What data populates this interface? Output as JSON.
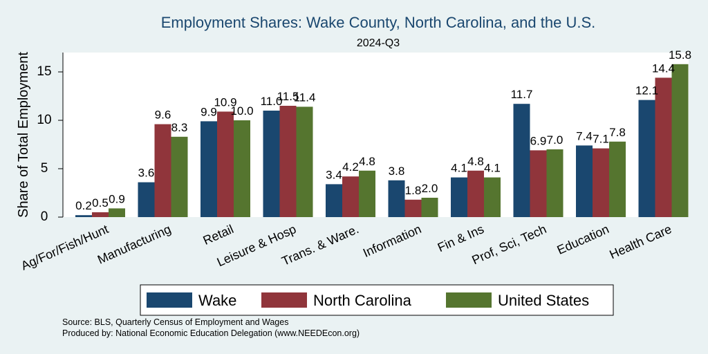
{
  "colors": {
    "background": "#eaf2f3",
    "plot_background": "#ffffff",
    "wake": "#1a476f",
    "north_carolina": "#90353b",
    "united_states": "#55752f"
  },
  "chart_data": {
    "type": "bar",
    "title": "Employment Shares: Wake County, North Carolina, and the U.S.",
    "subtitle": "2024-Q3",
    "xlabel": "",
    "ylabel": "Share of Total Employment",
    "ylim": [
      0,
      17
    ],
    "yticks": [
      0,
      5,
      10,
      15
    ],
    "grid": false,
    "legend_position": "bottom",
    "categories": [
      "Ag/For/Fish/Hunt",
      "Manufacturing",
      "Retail",
      "Leisure & Hosp",
      "Trans. & Ware.",
      "Information",
      "Fin & Ins",
      "Prof, Sci, Tech",
      "Education",
      "Health Care"
    ],
    "series": [
      {
        "name": "Wake",
        "color": "#1a476f",
        "values": [
          0.2,
          3.6,
          9.9,
          11.0,
          3.4,
          3.8,
          4.1,
          11.7,
          7.4,
          12.1
        ],
        "labels": [
          "0.2",
          "3.6",
          "9.9",
          "11.0",
          "3.4",
          "3.8",
          "4.1",
          "11.7",
          "7.4",
          "12.1"
        ]
      },
      {
        "name": "North Carolina",
        "color": "#90353b",
        "values": [
          0.5,
          9.6,
          10.9,
          11.5,
          4.2,
          1.8,
          4.8,
          6.9,
          7.1,
          14.4
        ],
        "labels": [
          "0.5",
          "9.6",
          "10.9",
          "11.5",
          "4.2",
          "1.8",
          "4.8",
          "6.9",
          "7.1",
          "14.4"
        ]
      },
      {
        "name": "United States",
        "color": "#55752f",
        "values": [
          0.9,
          8.3,
          10.0,
          11.4,
          4.8,
          2.0,
          4.1,
          7.0,
          7.8,
          15.8
        ],
        "labels": [
          "0.9",
          "8.3",
          "10.0",
          "11.4",
          "4.8",
          "2.0",
          "4.1",
          "7.0",
          "7.8",
          "15.8"
        ]
      }
    ]
  },
  "notes": {
    "source": "Source: BLS, Quarterly Census of Employment and Wages",
    "produced": "Produced by: National Economic Education Delegation (www.NEEDEcon.org)"
  }
}
